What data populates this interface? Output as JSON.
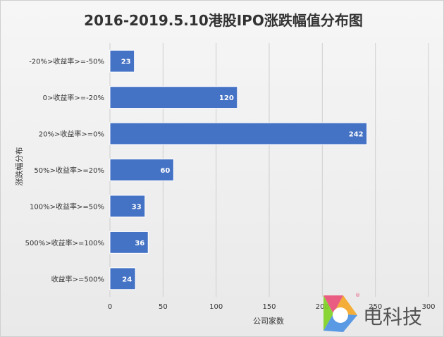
{
  "chart_data": {
    "type": "bar",
    "orientation": "horizontal",
    "title": "2016-2019.5.10港股IPO涨跌幅值分布图",
    "xlabel": "公司家数",
    "ylabel": "涨跌幅分布",
    "categories": [
      "-20%>收益率>=-50%",
      "0>收益率>=-20%",
      "20%>收益率>=0%",
      "50%>收益率>=20%",
      "100%>收益率>=50%",
      "500%>收益率>=100%",
      "收益率>=500%"
    ],
    "values": [
      23,
      120,
      242,
      60,
      33,
      36,
      24
    ],
    "xlim": [
      0,
      300
    ],
    "xticks": [
      0,
      50,
      100,
      150,
      200,
      250,
      300
    ],
    "grid": "vertical",
    "legend": "none",
    "bar_color": "#4472c4"
  },
  "watermark": {
    "text": "电科技",
    "mark": "®"
  }
}
